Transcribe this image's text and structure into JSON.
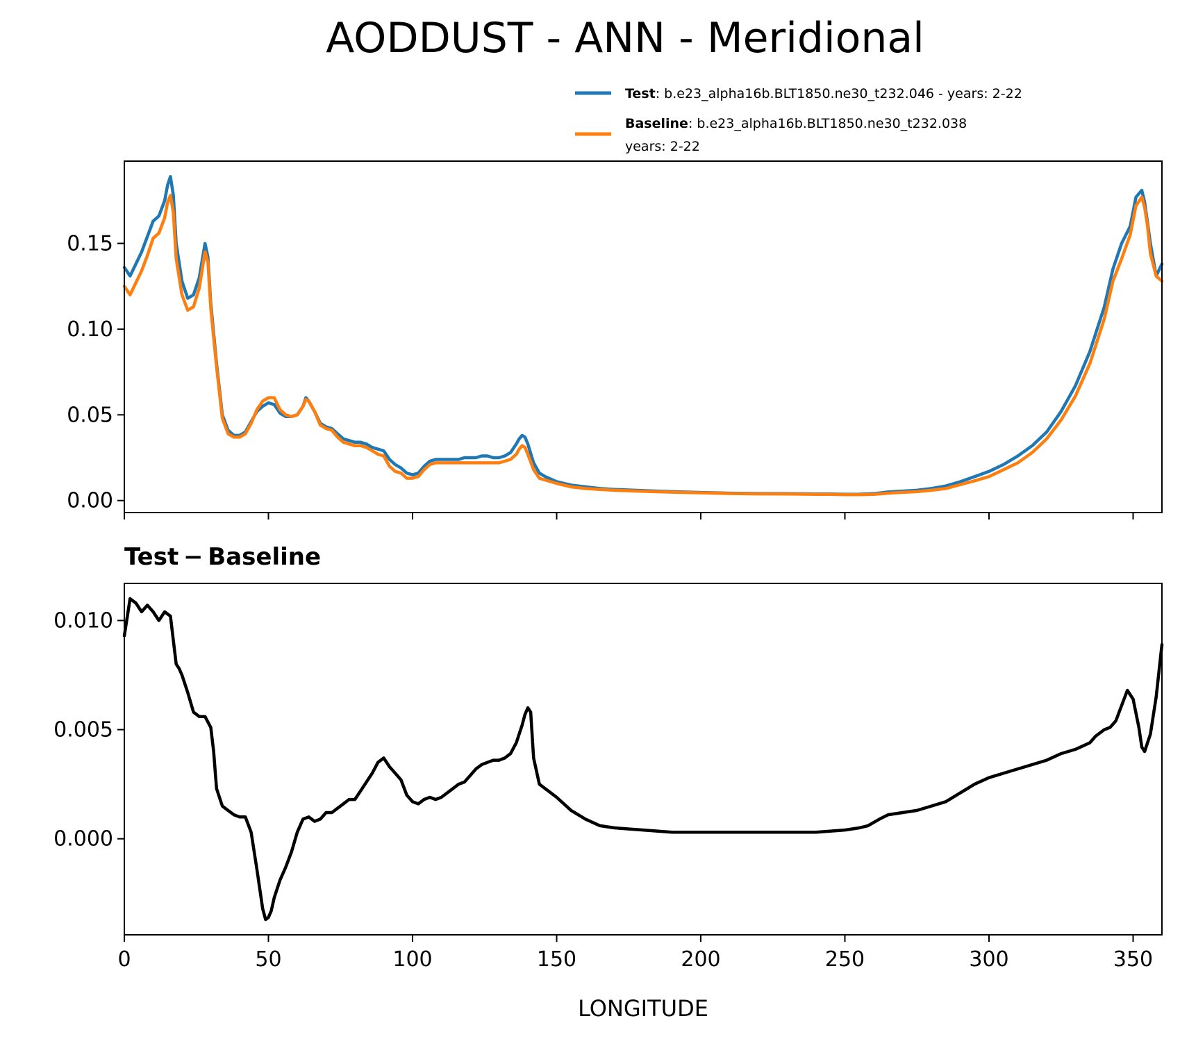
{
  "chart_data": [
    {
      "type": "line",
      "title": "AODDUST - ANN - Meridional",
      "xlim": [
        0,
        360
      ],
      "ylim": [
        -0.007,
        0.198
      ],
      "yticks": [
        0.0,
        0.05,
        0.1,
        0.15
      ],
      "ytick_labels": [
        "0.00",
        "0.05",
        "0.10",
        "0.15"
      ],
      "xticks": [
        0,
        50,
        100,
        150,
        200,
        250,
        300,
        350
      ],
      "grid": false,
      "legend": {
        "placement": "above-right",
        "entries": [
          {
            "key": "Test",
            "text": ": b.e23_alpha16b.BLT1850.ne30_t232.046 - years: 2-22",
            "color": "#1f77b4"
          },
          {
            "key": "Baseline",
            "text": ": b.e23_alpha16b.BLT1850.ne30_t232.038",
            "text2": "years: 2-22",
            "color": "#ff7f0e"
          }
        ]
      },
      "series": [
        {
          "name": "Test",
          "color": "#1f77b4",
          "x": [
            0,
            2,
            4,
            6,
            8,
            10,
            12,
            14,
            15,
            16,
            17,
            18,
            20,
            22,
            24,
            26,
            28,
            29,
            30,
            32,
            34,
            36,
            38,
            40,
            42,
            44,
            46,
            48,
            50,
            52,
            54,
            56,
            58,
            60,
            62,
            63,
            64,
            66,
            68,
            70,
            72,
            74,
            76,
            78,
            80,
            82,
            84,
            86,
            88,
            90,
            92,
            94,
            96,
            98,
            100,
            102,
            104,
            106,
            108,
            110,
            112,
            114,
            116,
            118,
            120,
            122,
            124,
            126,
            128,
            130,
            132,
            134,
            136,
            137,
            138,
            139,
            140,
            142,
            144,
            146,
            150,
            155,
            160,
            165,
            170,
            180,
            190,
            200,
            210,
            220,
            230,
            240,
            245,
            250,
            255,
            260,
            265,
            270,
            275,
            280,
            285,
            290,
            295,
            300,
            305,
            310,
            315,
            320,
            325,
            330,
            335,
            340,
            343,
            346,
            349,
            351,
            353,
            354,
            355,
            356,
            358,
            360
          ],
          "values": [
            0.136,
            0.131,
            0.138,
            0.145,
            0.154,
            0.163,
            0.166,
            0.175,
            0.184,
            0.189,
            0.178,
            0.15,
            0.128,
            0.118,
            0.12,
            0.13,
            0.15,
            0.142,
            0.115,
            0.08,
            0.05,
            0.041,
            0.038,
            0.038,
            0.04,
            0.046,
            0.052,
            0.055,
            0.057,
            0.056,
            0.051,
            0.049,
            0.049,
            0.05,
            0.055,
            0.06,
            0.058,
            0.052,
            0.045,
            0.043,
            0.042,
            0.039,
            0.036,
            0.035,
            0.034,
            0.034,
            0.033,
            0.031,
            0.03,
            0.029,
            0.024,
            0.021,
            0.019,
            0.016,
            0.015,
            0.016,
            0.02,
            0.023,
            0.024,
            0.024,
            0.024,
            0.024,
            0.024,
            0.025,
            0.025,
            0.025,
            0.026,
            0.026,
            0.025,
            0.025,
            0.026,
            0.028,
            0.033,
            0.036,
            0.038,
            0.037,
            0.033,
            0.022,
            0.016,
            0.014,
            0.011,
            0.009,
            0.008,
            0.007,
            0.0065,
            0.0058,
            0.0052,
            0.0047,
            0.0043,
            0.0041,
            0.004,
            0.0038,
            0.0038,
            0.0036,
            0.0037,
            0.004,
            0.005,
            0.0055,
            0.006,
            0.007,
            0.0085,
            0.011,
            0.014,
            0.017,
            0.021,
            0.026,
            0.032,
            0.04,
            0.052,
            0.067,
            0.087,
            0.113,
            0.135,
            0.15,
            0.16,
            0.177,
            0.181,
            0.174,
            0.162,
            0.15,
            0.131,
            0.138
          ]
        },
        {
          "name": "Baseline",
          "color": "#ff7f0e",
          "x": [
            0,
            2,
            4,
            6,
            8,
            10,
            12,
            14,
            15,
            16,
            17,
            18,
            20,
            22,
            24,
            26,
            28,
            29,
            30,
            32,
            34,
            36,
            38,
            40,
            42,
            44,
            46,
            48,
            50,
            52,
            54,
            56,
            58,
            60,
            62,
            63,
            64,
            66,
            68,
            70,
            72,
            74,
            76,
            78,
            80,
            82,
            84,
            86,
            88,
            90,
            92,
            94,
            96,
            98,
            100,
            102,
            104,
            106,
            108,
            110,
            112,
            114,
            116,
            118,
            120,
            122,
            124,
            126,
            128,
            130,
            132,
            134,
            136,
            137,
            138,
            139,
            140,
            142,
            144,
            146,
            150,
            155,
            160,
            165,
            170,
            180,
            190,
            200,
            210,
            220,
            230,
            240,
            245,
            250,
            255,
            260,
            265,
            270,
            275,
            280,
            285,
            290,
            295,
            300,
            305,
            310,
            315,
            320,
            325,
            330,
            335,
            340,
            343,
            346,
            349,
            351,
            353,
            354,
            355,
            356,
            358,
            360
          ],
          "values": [
            0.125,
            0.12,
            0.127,
            0.134,
            0.143,
            0.153,
            0.156,
            0.165,
            0.174,
            0.178,
            0.168,
            0.141,
            0.12,
            0.111,
            0.113,
            0.124,
            0.145,
            0.139,
            0.112,
            0.078,
            0.048,
            0.039,
            0.037,
            0.037,
            0.039,
            0.045,
            0.053,
            0.058,
            0.06,
            0.06,
            0.053,
            0.05,
            0.049,
            0.05,
            0.055,
            0.059,
            0.058,
            0.052,
            0.044,
            0.042,
            0.041,
            0.037,
            0.034,
            0.033,
            0.032,
            0.032,
            0.031,
            0.029,
            0.027,
            0.026,
            0.02,
            0.017,
            0.016,
            0.013,
            0.013,
            0.014,
            0.018,
            0.021,
            0.022,
            0.022,
            0.022,
            0.022,
            0.022,
            0.022,
            0.022,
            0.022,
            0.022,
            0.022,
            0.022,
            0.022,
            0.023,
            0.024,
            0.027,
            0.03,
            0.032,
            0.031,
            0.027,
            0.018,
            0.013,
            0.012,
            0.01,
            0.008,
            0.007,
            0.0065,
            0.006,
            0.0054,
            0.0049,
            0.0045,
            0.0041,
            0.0039,
            0.0038,
            0.0036,
            0.0036,
            0.0034,
            0.0034,
            0.0036,
            0.0043,
            0.0048,
            0.0052,
            0.006,
            0.007,
            0.0093,
            0.0115,
            0.014,
            0.018,
            0.022,
            0.028,
            0.036,
            0.047,
            0.061,
            0.08,
            0.106,
            0.128,
            0.141,
            0.155,
            0.172,
            0.177,
            0.171,
            0.16,
            0.144,
            0.131,
            0.128
          ]
        }
      ]
    },
    {
      "type": "line",
      "title": "Test − Baseline",
      "xlabel": "LONGITUDE",
      "xlim": [
        0,
        360
      ],
      "ylim": [
        -0.0044,
        0.0117
      ],
      "yticks": [
        0.0,
        0.005,
        0.01
      ],
      "ytick_labels": [
        "0.000",
        "0.005",
        "0.010"
      ],
      "xticks": [
        0,
        50,
        100,
        150,
        200,
        250,
        300,
        350
      ],
      "xtick_labels": [
        "0",
        "50",
        "100",
        "150",
        "200",
        "250",
        "300",
        "350"
      ],
      "grid": false,
      "series": [
        {
          "color": "#000000",
          "x": [
            0,
            2,
            4,
            6,
            8,
            10,
            12,
            14,
            16,
            18,
            19,
            20,
            22,
            24,
            26,
            28,
            30,
            31,
            32,
            34,
            36,
            38,
            40,
            42,
            44,
            46,
            48,
            49,
            50,
            51,
            52,
            54,
            56,
            58,
            60,
            62,
            64,
            66,
            68,
            70,
            72,
            74,
            76,
            78,
            80,
            82,
            84,
            86,
            88,
            90,
            92,
            94,
            96,
            98,
            100,
            102,
            104,
            106,
            108,
            110,
            112,
            114,
            116,
            118,
            120,
            122,
            124,
            126,
            128,
            130,
            132,
            134,
            136,
            138,
            139,
            140,
            141,
            142,
            144,
            146,
            148,
            150,
            155,
            160,
            165,
            170,
            180,
            190,
            200,
            210,
            220,
            230,
            240,
            250,
            255,
            258,
            262,
            265,
            270,
            275,
            280,
            285,
            290,
            295,
            300,
            305,
            310,
            315,
            320,
            325,
            330,
            335,
            337,
            340,
            342,
            344,
            346,
            348,
            350,
            352,
            353,
            354,
            356,
            358,
            360
          ],
          "values": [
            0.0093,
            0.011,
            0.0108,
            0.0104,
            0.0107,
            0.0104,
            0.01,
            0.0104,
            0.0102,
            0.008,
            0.0078,
            0.0075,
            0.0067,
            0.0058,
            0.0056,
            0.0056,
            0.0051,
            0.004,
            0.0023,
            0.0015,
            0.0013,
            0.0011,
            0.001,
            0.001,
            0.0003,
            -0.0014,
            -0.0032,
            -0.0037,
            -0.0036,
            -0.0033,
            -0.0027,
            -0.0019,
            -0.0013,
            -0.0006,
            0.0003,
            0.0009,
            0.001,
            0.0008,
            0.0009,
            0.0012,
            0.0012,
            0.0014,
            0.0016,
            0.0018,
            0.0018,
            0.0022,
            0.0026,
            0.003,
            0.0035,
            0.0037,
            0.0033,
            0.003,
            0.0027,
            0.002,
            0.0017,
            0.0016,
            0.0018,
            0.0019,
            0.0018,
            0.0019,
            0.0021,
            0.0023,
            0.0025,
            0.0026,
            0.0029,
            0.0032,
            0.0034,
            0.0035,
            0.0036,
            0.0036,
            0.0037,
            0.0039,
            0.0044,
            0.0052,
            0.0057,
            0.006,
            0.0058,
            0.0037,
            0.0025,
            0.0023,
            0.0021,
            0.0019,
            0.0013,
            0.0009,
            0.0006,
            0.0005,
            0.0004,
            0.0003,
            0.0003,
            0.0003,
            0.0003,
            0.0003,
            0.0003,
            0.0004,
            0.0005,
            0.0006,
            0.0009,
            0.0011,
            0.0012,
            0.0013,
            0.0015,
            0.0017,
            0.0021,
            0.0025,
            0.0028,
            0.003,
            0.0032,
            0.0034,
            0.0036,
            0.0039,
            0.0041,
            0.0044,
            0.0047,
            0.005,
            0.0051,
            0.0054,
            0.0061,
            0.0068,
            0.0064,
            0.0051,
            0.0042,
            0.004,
            0.0048,
            0.0065,
            0.0089
          ]
        }
      ]
    }
  ]
}
